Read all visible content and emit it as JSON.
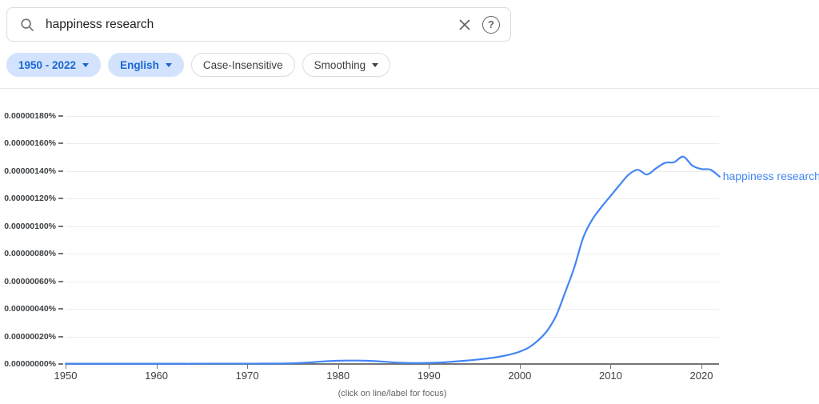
{
  "search": {
    "query": "happiness research",
    "icons": {
      "search": "search-icon",
      "clear": "close-icon",
      "help": "help-icon",
      "help_glyph": "?"
    }
  },
  "filters": {
    "year_range": {
      "label": "1950 - 2022",
      "dropdown": true,
      "active": true
    },
    "corpus": {
      "label": "English",
      "dropdown": true,
      "active": true
    },
    "case": {
      "label": "Case-Insensitive",
      "dropdown": false,
      "active": false
    },
    "smoothing": {
      "label": "Smoothing",
      "dropdown": true,
      "active": false
    }
  },
  "chart_data": {
    "type": "line",
    "title": "",
    "xlabel": "",
    "ylabel": "",
    "grid": true,
    "legend_position": "end-of-line",
    "xlim": [
      1950,
      2022
    ],
    "ylim": [
      0,
      180
    ],
    "value_unit": "1e-8 percent (axis shows 0.00000000% to 0.00000180%)",
    "x_ticks": [
      1950,
      1960,
      1970,
      1980,
      1990,
      2000,
      2010,
      2020
    ],
    "y_ticks": [
      {
        "value": 0,
        "label": "0.00000000%"
      },
      {
        "value": 20,
        "label": "0.00000020%"
      },
      {
        "value": 40,
        "label": "0.00000040%"
      },
      {
        "value": 60,
        "label": "0.00000060%"
      },
      {
        "value": 80,
        "label": "0.00000080%"
      },
      {
        "value": 100,
        "label": "0.00000100%"
      },
      {
        "value": 120,
        "label": "0.00000120%"
      },
      {
        "value": 140,
        "label": "0.00000140%"
      },
      {
        "value": 160,
        "label": "0.00000160%"
      },
      {
        "value": 180,
        "label": "0.00000180%"
      }
    ],
    "series": [
      {
        "name": "happiness research",
        "color": "#4285f4",
        "x_start": 1950,
        "x_step": 1,
        "values": [
          0.2,
          0.2,
          0.2,
          0.2,
          0.2,
          0.2,
          0.2,
          0.2,
          0.2,
          0.2,
          0.2,
          0.2,
          0.2,
          0.2,
          0.2,
          0.25,
          0.25,
          0.25,
          0.25,
          0.25,
          0.25,
          0.25,
          0.3,
          0.3,
          0.4,
          0.5,
          0.8,
          1.2,
          1.7,
          2.1,
          2.4,
          2.5,
          2.5,
          2.4,
          2.1,
          1.7,
          1.2,
          0.9,
          0.7,
          0.7,
          0.8,
          1.0,
          1.4,
          1.9,
          2.4,
          3.0,
          3.7,
          4.5,
          5.6,
          7.0,
          9.0,
          12,
          17,
          24,
          35,
          52,
          70,
          92,
          105,
          114,
          122,
          130,
          137.5,
          141,
          137.5,
          142,
          146,
          146.5,
          150.5,
          144,
          141.5,
          141,
          136
        ]
      }
    ]
  },
  "footer": {
    "caption": "(click on line/label for focus)"
  }
}
